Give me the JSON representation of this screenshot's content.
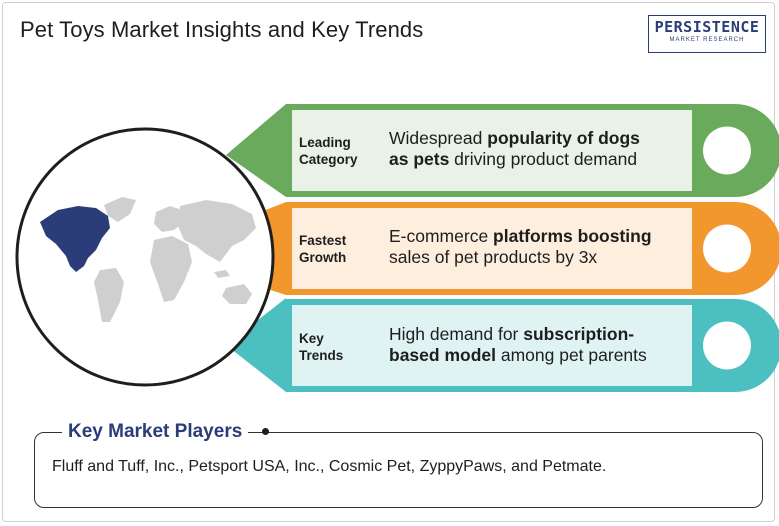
{
  "header": {
    "title": "Pet Toys Market Insights and Key Trends",
    "logo_main": "PERSISTENCE",
    "logo_sub": "MARKET RESEARCH"
  },
  "insights": [
    {
      "label_line1": "Leading",
      "label_line2": "Category",
      "desc_line1_pre": "Widespread ",
      "desc_line1_bold": "popularity of dogs",
      "desc_line2_bold": "as pets",
      "desc_line2_post": " driving product demand",
      "color": "#6aaa5d",
      "panel_bg": "#e8f2e6"
    },
    {
      "label_line1": "Fastest",
      "label_line2": "Growth",
      "desc_line1_pre": "E-commerce ",
      "desc_line1_bold": "platforms boosting",
      "desc_line2_bold": "",
      "desc_line2_post": "sales of pet products by 3x",
      "color": "#f2962e",
      "panel_bg": "#fdeedd"
    },
    {
      "label_line1": "Key",
      "label_line2": "Trends",
      "desc_line1_pre": "High demand for ",
      "desc_line1_bold": "subscription-",
      "desc_line2_bold": "based model",
      "desc_line2_post": " among pet parents",
      "color": "#4cbfc0",
      "panel_bg": "#dff3f3"
    }
  ],
  "players": {
    "title": "Key Market Players",
    "text": "Fluff and Tuff, Inc., Petsport USA, Inc., Cosmic Pet, ZyppyPaws, and Petmate."
  },
  "map": {
    "highlight_color": "#2b3d78",
    "land_color": "#cfcfcf"
  }
}
